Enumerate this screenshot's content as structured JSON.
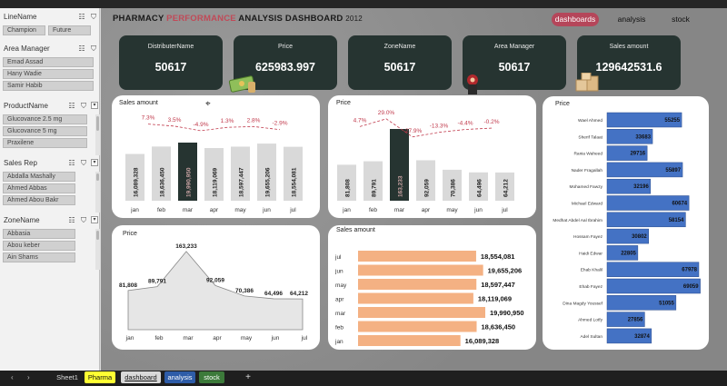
{
  "slicers": {
    "line_name": {
      "title": "LineName",
      "items": [
        "Champion",
        "Future"
      ]
    },
    "area_manager": {
      "title": "Area Manager",
      "items": [
        "Emad Assad",
        "Hany Wadie",
        "Samir Habib"
      ]
    },
    "product_name": {
      "title": "ProductName",
      "items": [
        "Glucovance 2.5 mg",
        "Glucovance 5 mg",
        "Praxilene"
      ]
    },
    "sales_rep": {
      "title": "Sales Rep",
      "items": [
        "Abdalla Mashally",
        "Ahmed Abbas",
        "Ahmed Abou Bakr"
      ]
    },
    "zone_name": {
      "title": "ZoneName",
      "items": [
        "Abbasia",
        "Abou keber",
        "Ain Shams"
      ]
    }
  },
  "header": {
    "title_pre": "PHARMACY ",
    "title_hl": "PERFORMANCE",
    "title_post": " ANALYSIS DASHBOARD ",
    "year": "2012",
    "nav": [
      "dashboards",
      "analysis",
      "stock"
    ]
  },
  "kpis": [
    {
      "label": "DistributerName",
      "value": "50617",
      "icon": ""
    },
    {
      "label": "Price",
      "value": "625983.997",
      "icon": "money-icon"
    },
    {
      "label": "ZoneName",
      "value": "50617",
      "icon": ""
    },
    {
      "label": "Area Manager",
      "value": "50617",
      "icon": "manager-icon"
    },
    {
      "label": "Sales amount",
      "value": "129642531.6",
      "icon": "boxes-icon"
    }
  ],
  "colors": {
    "highlight": "#263431",
    "bar_grey": "#d9d9d9",
    "orange": "#f4b183",
    "blue": "#4472c4",
    "pct": "#c0394b",
    "active_tab": "#b5465a"
  },
  "charts": {
    "sales_column": {
      "title": "Sales amount",
      "highlight": "mar"
    },
    "price_column": {
      "title": "Price",
      "highlight": "mar"
    },
    "price_area": {
      "title": "Price"
    },
    "sales_bar": {
      "title": "Sales amount"
    },
    "rep_bar": {
      "title": "Price"
    }
  },
  "chart_data": [
    {
      "type": "bar",
      "title": "Sales amount",
      "categories": [
        "jan",
        "feb",
        "mar",
        "apr",
        "may",
        "jun",
        "jul"
      ],
      "values": [
        16089328,
        18636450,
        19990950,
        18119069,
        18597447,
        19655206,
        18554081
      ],
      "labels": [
        "16,089,328",
        "18,636,450",
        "19,990,950",
        "18,119,069",
        "18,597,447",
        "19,655,206",
        "18,554,081"
      ],
      "pct_change": [
        "7.3%",
        "3.5%",
        "-4.9%",
        "1.3%",
        "2.8%",
        "-2.9%"
      ]
    },
    {
      "type": "bar",
      "title": "Price",
      "categories": [
        "jan",
        "feb",
        "mar",
        "apr",
        "may",
        "jun",
        "jul"
      ],
      "values": [
        81808,
        89791,
        163233,
        92059,
        70386,
        64496,
        64212
      ],
      "labels": [
        "81,808",
        "89,791",
        "163,233",
        "92,059",
        "70,386",
        "64,496",
        "64,212"
      ],
      "pct_change": [
        "4.7%",
        "29.0%",
        "-27.9%",
        "-13.3%",
        "-4.4%",
        "-0.2%"
      ]
    },
    {
      "type": "area",
      "title": "Price",
      "categories": [
        "jan",
        "feb",
        "mar",
        "apr",
        "may",
        "jun",
        "jul"
      ],
      "values": [
        81808,
        89791,
        163233,
        92059,
        70386,
        64496,
        64212
      ],
      "labels": [
        "81,808",
        "89,791",
        "163,233",
        "92,059",
        "70,386",
        "64,496",
        "64,212"
      ]
    },
    {
      "type": "bar",
      "title": "Sales amount",
      "orientation": "horizontal",
      "categories": [
        "jul",
        "jun",
        "may",
        "apr",
        "mar",
        "feb",
        "jan"
      ],
      "values": [
        18554081,
        19655206,
        18597447,
        18119069,
        19990950,
        18636450,
        16089328
      ],
      "labels": [
        "18,554,081",
        "19,655,206",
        "18,597,447",
        "18,119,069",
        "19,990,950",
        "18,636,450",
        "16,089,328"
      ]
    },
    {
      "type": "bar",
      "title": "Price",
      "orientation": "horizontal",
      "categories": [
        "Wael Ahmed",
        "Sherif Talaat",
        "Rania Waheed",
        "Nader Fragallah",
        "Mohamed Fawzy",
        "Michael Edward",
        "Medhat Abdel Aal Ibrahim",
        "Hossam Fayez",
        "Haidi Edwar",
        "Ehab Khalil",
        "Ehab Fayez",
        "Dina Magdy Youssef",
        "Ahmed Lotfy",
        "Adel Sultan"
      ],
      "values": [
        55255,
        33683,
        29716,
        55897,
        32196,
        60674,
        58154,
        30802,
        22805,
        67978,
        69059,
        51055,
        27856,
        32874
      ]
    }
  ],
  "sheet_tabs": [
    "Sheet1",
    "Pharma",
    "dashboard",
    "analysis",
    "stock"
  ],
  "add_sheet": "+"
}
